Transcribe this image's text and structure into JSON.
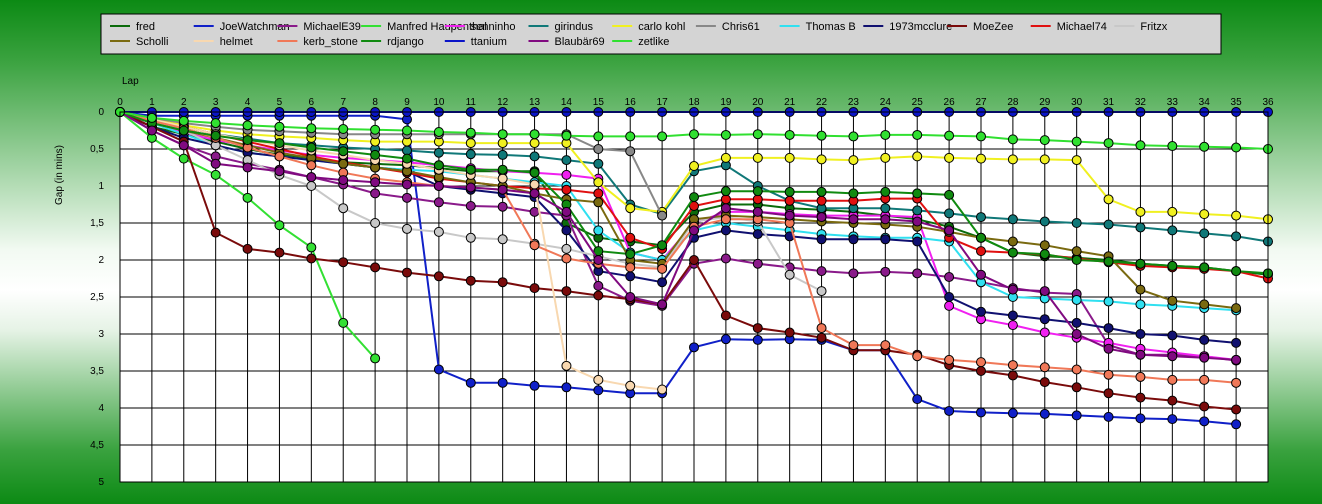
{
  "chart_data": {
    "type": "line",
    "title": "",
    "xlabel": "Lap",
    "ylabel": "Gap (in mins)",
    "x": [
      0,
      1,
      2,
      3,
      4,
      5,
      6,
      7,
      8,
      9,
      10,
      11,
      12,
      13,
      14,
      15,
      16,
      17,
      18,
      19,
      20,
      21,
      22,
      23,
      24,
      25,
      26,
      27,
      28,
      29,
      30,
      31,
      32,
      33,
      34,
      35,
      36
    ],
    "x_ticks": [
      "0",
      "1",
      "2",
      "3",
      "4",
      "5",
      "6",
      "7",
      "8",
      "9",
      "10",
      "11",
      "12",
      "13",
      "14",
      "15",
      "16",
      "17",
      "18",
      "19",
      "20",
      "21",
      "22",
      "23",
      "24",
      "25",
      "26",
      "27",
      "28",
      "29",
      "30",
      "31",
      "32",
      "33",
      "34",
      "35",
      "36"
    ],
    "y_ticks": [
      "0",
      "0,5",
      "1",
      "1,5",
      "2",
      "2,5",
      "3",
      "3,5",
      "4",
      "4,5",
      "5"
    ],
    "xlim": [
      0,
      36
    ],
    "ylim": [
      0,
      5
    ],
    "y_inverted": true,
    "grid": true,
    "legend_position": "top",
    "series": [
      {
        "name": "fred",
        "color": "#0b6b0b",
        "values": [
          0,
          0.2,
          0.3,
          0.4,
          0.5,
          0.58,
          0.63,
          0.68,
          0.7,
          0.72,
          0.76,
          0.8,
          0.8,
          0.8,
          1.5,
          1.7,
          1.75,
          1.8,
          1.35,
          1.25,
          1.25,
          1.3,
          1.32,
          1.35,
          1.4,
          1.45,
          1.55,
          1.7,
          1.9,
          1.95,
          1.97,
          2.0,
          2.05,
          2.08,
          2.1,
          2.15,
          2.2
        ]
      },
      {
        "name": "JoeWatchman",
        "color": "#1020c8",
        "values": [
          0,
          0.05,
          0.05,
          0.05,
          0.05,
          0.05,
          0.05,
          0.05,
          0.05,
          0.1,
          3.48,
          3.66,
          3.66,
          3.7,
          3.72,
          3.76,
          3.8,
          3.8,
          3.18,
          3.07,
          3.08,
          3.07,
          3.08,
          3.22,
          3.22,
          3.88,
          4.04,
          4.06,
          4.07,
          4.08,
          4.1,
          4.12,
          4.14,
          4.15,
          4.18,
          4.22,
          null
        ]
      },
      {
        "name": "MichaelE39",
        "color": "#8a1a8a",
        "values": [
          0,
          0.25,
          0.45,
          0.6,
          0.7,
          0.78,
          0.88,
          0.98,
          1.1,
          1.16,
          1.22,
          1.27,
          1.28,
          1.35,
          1.4,
          2.35,
          2.55,
          2.62,
          2.05,
          1.98,
          2.05,
          2.1,
          2.15,
          2.18,
          2.16,
          2.18,
          2.23,
          2.3,
          2.38,
          2.44,
          2.46,
          3.15,
          3.28,
          3.28,
          3.3,
          3.36,
          null
        ]
      },
      {
        "name": "Manfred Haupenthal",
        "color": "#33e033",
        "values": [
          0,
          0.35,
          0.63,
          0.85,
          1.16,
          1.53,
          1.83,
          2.85,
          3.33,
          null,
          null,
          null,
          null,
          null,
          null,
          null,
          null,
          null,
          null,
          null,
          null,
          null,
          null,
          null,
          null,
          null,
          null,
          null,
          null,
          null,
          null,
          null,
          null,
          null,
          null,
          null,
          null
        ]
      },
      {
        "name": "senninho",
        "color": "#f020f0",
        "values": [
          0,
          0.15,
          0.28,
          0.38,
          0.45,
          0.52,
          0.58,
          0.62,
          0.65,
          0.68,
          0.72,
          0.76,
          0.8,
          0.82,
          0.85,
          0.9,
          1.9,
          2.0,
          1.5,
          1.35,
          1.35,
          1.38,
          1.4,
          1.4,
          1.4,
          1.42,
          2.62,
          2.8,
          2.88,
          2.98,
          3.05,
          3.12,
          3.2,
          3.25,
          3.3,
          3.35,
          null
        ]
      },
      {
        "name": "girindus",
        "color": "#107878",
        "values": [
          0,
          0.1,
          0.2,
          0.3,
          0.36,
          0.42,
          0.45,
          0.48,
          0.5,
          0.52,
          0.55,
          0.57,
          0.58,
          0.6,
          0.65,
          0.7,
          1.25,
          1.38,
          0.8,
          0.72,
          1.0,
          1.2,
          1.3,
          1.3,
          1.3,
          1.33,
          1.37,
          1.42,
          1.45,
          1.48,
          1.5,
          1.52,
          1.56,
          1.6,
          1.64,
          1.68,
          1.75
        ]
      },
      {
        "name": "carlo kohl",
        "color": "#f0f020",
        "values": [
          0,
          0.1,
          0.18,
          0.25,
          0.3,
          0.33,
          0.35,
          0.38,
          0.4,
          0.4,
          0.4,
          0.42,
          0.42,
          0.42,
          0.42,
          0.95,
          1.3,
          1.35,
          0.73,
          0.62,
          0.62,
          0.62,
          0.64,
          0.65,
          0.62,
          0.6,
          0.62,
          0.63,
          0.64,
          0.64,
          0.65,
          1.18,
          1.35,
          1.35,
          1.38,
          1.4,
          1.45
        ]
      },
      {
        "name": "Chris61",
        "color": "#888888",
        "values": [
          0,
          0.08,
          0.15,
          0.2,
          0.24,
          0.26,
          0.28,
          0.3,
          0.3,
          0.3,
          0.3,
          0.3,
          0.3,
          0.3,
          0.3,
          0.5,
          0.53,
          1.4,
          null,
          null,
          null,
          null,
          null,
          null,
          null,
          null,
          null,
          null,
          null,
          null,
          null,
          null,
          null,
          null,
          null,
          null,
          null
        ]
      },
      {
        "name": "Thomas B",
        "color": "#30e0f0",
        "values": [
          0,
          0.15,
          0.3,
          0.45,
          0.55,
          0.6,
          0.65,
          0.7,
          0.75,
          0.78,
          0.8,
          0.85,
          0.9,
          0.95,
          1.0,
          1.6,
          1.9,
          2.0,
          1.6,
          1.5,
          1.55,
          1.6,
          1.65,
          1.68,
          1.7,
          1.7,
          1.75,
          2.3,
          2.5,
          2.52,
          2.54,
          2.56,
          2.6,
          2.62,
          2.65,
          2.68,
          null
        ]
      },
      {
        "name": "1973mcclure",
        "color": "#101070",
        "values": [
          0,
          0.2,
          0.35,
          0.45,
          0.55,
          0.6,
          0.65,
          0.7,
          0.75,
          0.8,
          1.0,
          1.05,
          1.1,
          1.15,
          1.6,
          2.15,
          2.22,
          2.3,
          1.7,
          1.6,
          1.65,
          1.68,
          1.72,
          1.72,
          1.72,
          1.75,
          2.5,
          2.7,
          2.75,
          2.8,
          2.85,
          2.92,
          3.0,
          3.02,
          3.08,
          3.12,
          null
        ]
      },
      {
        "name": "MoeZee",
        "color": "#7a0b0b",
        "values": [
          0,
          0.2,
          0.4,
          1.63,
          1.85,
          1.9,
          1.98,
          2.03,
          2.1,
          2.17,
          2.22,
          2.28,
          2.3,
          2.38,
          2.42,
          2.48,
          2.53,
          2.6,
          2.0,
          2.75,
          2.92,
          2.98,
          3.05,
          3.22,
          3.22,
          3.28,
          3.42,
          3.5,
          3.56,
          3.65,
          3.72,
          3.8,
          3.86,
          3.9,
          3.98,
          4.02,
          null
        ]
      },
      {
        "name": "Michael74",
        "color": "#e01010",
        "values": [
          0,
          0.12,
          0.2,
          0.3,
          0.4,
          0.5,
          0.6,
          0.68,
          0.75,
          0.82,
          0.9,
          0.95,
          1.0,
          1.03,
          1.05,
          1.1,
          1.7,
          1.85,
          1.27,
          1.18,
          1.18,
          1.2,
          1.2,
          1.2,
          1.17,
          1.17,
          1.7,
          1.88,
          1.9,
          1.93,
          1.98,
          2.03,
          2.08,
          2.1,
          2.12,
          2.15,
          2.25
        ]
      },
      {
        "name": "Fritzx",
        "color": "#c8c8c8",
        "values": [
          0,
          0.12,
          0.25,
          0.45,
          0.65,
          0.85,
          1.0,
          1.3,
          1.5,
          1.58,
          1.62,
          1.7,
          1.72,
          1.78,
          1.85,
          1.95,
          2.05,
          2.1,
          1.48,
          1.42,
          1.48,
          2.2,
          2.42,
          null,
          null,
          null,
          null,
          null,
          null,
          null,
          null,
          null,
          null,
          null,
          null,
          null,
          null
        ]
      },
      {
        "name": "Scholli",
        "color": "#7a6a10",
        "values": [
          0,
          0.15,
          0.25,
          0.35,
          0.45,
          0.55,
          0.62,
          0.7,
          0.75,
          0.8,
          0.88,
          0.95,
          1.0,
          1.1,
          1.18,
          1.22,
          2.0,
          2.05,
          1.45,
          1.4,
          1.42,
          1.45,
          1.48,
          1.5,
          1.52,
          1.55,
          1.62,
          1.7,
          1.75,
          1.8,
          1.88,
          1.95,
          2.4,
          2.55,
          2.6,
          2.65,
          null
        ]
      },
      {
        "name": "helmet",
        "color": "#f8d8b0",
        "values": [
          0,
          0.1,
          0.2,
          0.3,
          0.38,
          0.45,
          0.52,
          0.58,
          0.65,
          0.7,
          0.78,
          0.85,
          0.9,
          0.98,
          3.43,
          3.62,
          3.7,
          3.75,
          null,
          null,
          null,
          null,
          null,
          null,
          null,
          null,
          null,
          null,
          null,
          null,
          null,
          null,
          null,
          null,
          null,
          null,
          null
        ]
      },
      {
        "name": "kerb_stone",
        "color": "#f07858",
        "values": [
          0,
          0.12,
          0.22,
          0.35,
          0.48,
          0.6,
          0.72,
          0.82,
          0.9,
          0.95,
          1.0,
          1.02,
          1.05,
          1.8,
          1.98,
          2.05,
          2.1,
          2.12,
          1.55,
          1.45,
          1.45,
          1.5,
          2.92,
          3.15,
          3.15,
          3.3,
          3.35,
          3.38,
          3.42,
          3.45,
          3.48,
          3.55,
          3.58,
          3.62,
          3.62,
          3.66,
          null
        ]
      },
      {
        "name": "rdjango",
        "color": "#108a10",
        "values": [
          0,
          0.15,
          0.25,
          0.32,
          0.38,
          0.42,
          0.48,
          0.53,
          0.58,
          0.63,
          0.72,
          0.78,
          0.78,
          0.82,
          1.25,
          1.88,
          1.92,
          1.8,
          1.15,
          1.07,
          1.07,
          1.08,
          1.08,
          1.1,
          1.08,
          1.1,
          1.12,
          1.7,
          1.9,
          1.92,
          2.0,
          2.02,
          2.05,
          2.08,
          2.1,
          2.15,
          2.18
        ]
      },
      {
        "name": "ttanium",
        "color": "#0a14c8",
        "values": [
          0,
          0,
          0,
          0,
          0,
          0,
          0,
          0,
          0,
          0,
          0,
          0,
          0,
          0,
          0,
          0,
          0,
          0,
          0,
          0,
          0,
          0,
          0,
          0,
          0,
          0,
          0,
          0,
          0,
          0,
          0,
          0,
          0,
          0,
          0,
          0,
          0
        ]
      },
      {
        "name": "Blaubär69",
        "color": "#800a80",
        "values": [
          0,
          0.25,
          0.45,
          0.7,
          0.75,
          0.8,
          0.88,
          0.92,
          0.95,
          0.98,
          1.0,
          1.02,
          1.05,
          1.1,
          1.35,
          2.0,
          2.5,
          2.6,
          1.6,
          1.3,
          1.35,
          1.4,
          1.42,
          1.45,
          1.45,
          1.48,
          1.6,
          2.2,
          2.4,
          2.42,
          3.0,
          3.2,
          3.28,
          3.3,
          3.32,
          3.35,
          null
        ]
      },
      {
        "name": "zetlike",
        "color": "#30e030",
        "values": [
          0,
          0.08,
          0.12,
          0.15,
          0.18,
          0.2,
          0.22,
          0.23,
          0.24,
          0.25,
          0.27,
          0.28,
          0.3,
          0.3,
          0.32,
          0.33,
          0.33,
          0.33,
          0.3,
          0.31,
          0.3,
          0.31,
          0.32,
          0.33,
          0.31,
          0.31,
          0.32,
          0.33,
          0.37,
          0.38,
          0.4,
          0.42,
          0.45,
          0.46,
          0.47,
          0.48,
          0.5
        ]
      }
    ]
  }
}
